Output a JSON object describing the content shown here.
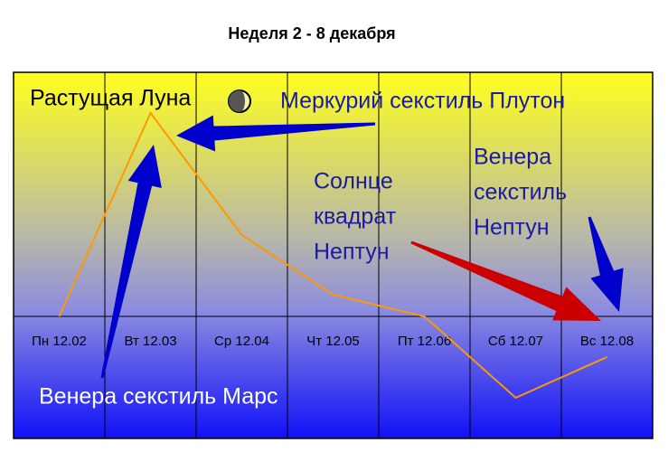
{
  "chart_data": {
    "type": "line",
    "title": "Неделя 2 - 8 декабря",
    "categories": [
      "Пн 12.02",
      "Вт 12.03",
      "Ср 12.04",
      "Чт 12.05",
      "Пт 12.06",
      "Сб 12.07",
      "Вс 12.08"
    ],
    "values": [
      0,
      225,
      90,
      24,
      0,
      -90,
      -45
    ],
    "color": "#ff9900",
    "ylim": [
      -135,
      270
    ],
    "annotations": [
      [
        "Растущая Луна"
      ],
      [
        "Меркурий секстиль Плутон"
      ],
      [
        "Солнце",
        "квадрат",
        "Нептун"
      ],
      [
        "Венера",
        "секстиль",
        "Нептун"
      ],
      [
        "Венера секстиль Марс"
      ]
    ]
  }
}
